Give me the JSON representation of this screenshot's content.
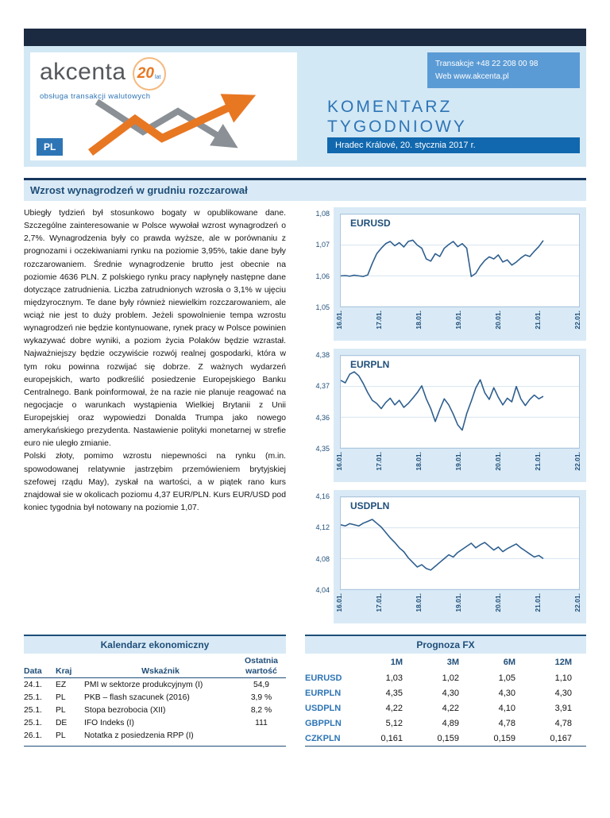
{
  "colors": {
    "navy": "#1b2a41",
    "header_bg": "#d3e8f5",
    "panel_bg": "#d9eaf6",
    "accent_blue": "#2e75b6",
    "dark_blue": "#1f4e79",
    "date_bar_blue": "#1168ae",
    "contact_box_blue": "#5b9bd5",
    "orange": "#e87722",
    "chart_line_blue": "#2d5e8e"
  },
  "header": {
    "logo_text": "akcenta",
    "anniversary_number": "20",
    "anniversary_unit": "lat",
    "tagline": "obsługa transakcji walutowych",
    "lang_badge": "PL",
    "contact_phone": "Transakcje +48 22 208 00 98",
    "contact_web_label": "Web ",
    "contact_web_link": "www.akcenta.pl",
    "title_line1": "KOMENTARZ",
    "title_line2": "TYGODNIOWY",
    "dateline": "Hradec Králové, 20. stycznia 2017 r."
  },
  "article": {
    "headline": "Wzrost wynagrodzeń w grudniu rozczarował",
    "paragraphs": [
      "Ubiegły tydzień był stosunkowo bogaty w opublikowane dane. Szczególne zainteresowanie w Polsce wywołał wzrost wynagrodzeń o 2,7%. Wynagrodzenia były co prawda wyższe, ale w porównaniu z prognozami i oczekiwaniami rynku na poziomie 3,95%, takie dane były rozczarowaniem. Średnie wynagrodzenie brutto jest obecnie na poziomie 4636 PLN. Z polskiego rynku pracy napłynęły następne dane dotyczące zatrudnienia. Liczba zatrudnionych wzrosła o 3,1% w ujęciu międzyrocznym. Te dane były również niewielkim rozczarowaniem, ale wciąż nie jest to duży problem. Jeżeli spowolnienie tempa wzrostu wynagrodzeń nie będzie kontynuowane, rynek pracy w Polsce powinien wykazywać dobre wyniki, a poziom życia Polaków będzie wzrastał. Najważniejszy będzie oczywiście rozwój realnej gospodarki, która w tym roku powinna rozwijać się dobrze. Z ważnych wydarzeń europejskich, warto podkreślić posiedzenie Europejskiego Banku Centralnego. Bank poinformował, że na razie nie planuje reagować na negocjacje o warunkach wystąpienia Wielkiej Brytanii z Unii Europejskiej oraz wypowiedzi Donalda Trumpa jako nowego amerykańskiego prezydenta. Nastawienie polityki monetarnej w strefie euro nie uległo zmianie.",
      "Polski złoty, pomimo wzrostu niepewności na rynku (m.in. spowodowanej relatywnie jastrzębim przemówieniem brytyjskiej szefowej rządu May), zyskał na wartości, a w piątek rano kurs znajdował sie w okolicach poziomu 4,37 EUR/PLN. Kurs EUR/USD pod koniec tygodnia był notowany na poziomie 1,07."
    ]
  },
  "calendar": {
    "title": "Kalendarz ekonomiczny",
    "headers": [
      "Data",
      "Kraj",
      "Wskaźnik",
      "Ostatnia wartość"
    ],
    "rows": [
      [
        "24.1.",
        "EZ",
        "PMI w sektorze produkcyjnym (I)",
        "54,9"
      ],
      [
        "25.1.",
        "PL",
        "PKB – flash szacunek (2016)",
        "3,9 %"
      ],
      [
        "25.1.",
        "PL",
        "Stopa bezrobocia  (XII)",
        "8,2 %"
      ],
      [
        "25.1.",
        "DE",
        "IFO Indeks (I)",
        "111"
      ],
      [
        "26.1.",
        "PL",
        "Notatka z posiedzenia RPP (I)",
        ""
      ]
    ]
  },
  "forecast": {
    "title": "Prognoza FX",
    "headers": [
      "1M",
      "3M",
      "6M",
      "12M"
    ],
    "rows": [
      {
        "pair": "EURUSD",
        "values": [
          "1,03",
          "1,02",
          "1,05",
          "1,10"
        ]
      },
      {
        "pair": "EURPLN",
        "values": [
          "4,35",
          "4,30",
          "4,30",
          "4,30"
        ]
      },
      {
        "pair": "USDPLN",
        "values": [
          "4,22",
          "4,22",
          "4,10",
          "3,91"
        ]
      },
      {
        "pair": "GBPPLN",
        "values": [
          "5,12",
          "4,89",
          "4,78",
          "4,78"
        ]
      },
      {
        "pair": "CZKPLN",
        "values": [
          "0,161",
          "0,159",
          "0,159",
          "0,167"
        ]
      }
    ]
  },
  "chart_data": [
    {
      "type": "line",
      "title": "EURUSD",
      "ylim": [
        1.05,
        1.08
      ],
      "ytick_labels": [
        "1,08",
        "1,07",
        "1,06",
        "1,05"
      ],
      "ytick_values": [
        1.08,
        1.07,
        1.06,
        1.05
      ],
      "xtick_labels": [
        "16.01.",
        "17.01.",
        "18.01.",
        "19.01.",
        "20.01.",
        "21.01.",
        "22.01."
      ],
      "x_data_fraction": 0.85,
      "values": [
        1.06,
        1.0601,
        1.0599,
        1.0602,
        1.06,
        1.0598,
        1.0603,
        1.064,
        1.0672,
        1.069,
        1.0705,
        1.0712,
        1.0698,
        1.0708,
        1.0694,
        1.0712,
        1.0716,
        1.07,
        1.069,
        1.0655,
        1.0648,
        1.0672,
        1.0663,
        1.069,
        1.0702,
        1.0712,
        1.0695,
        1.0705,
        1.069,
        1.0598,
        1.0608,
        1.0632,
        1.065,
        1.0662,
        1.0655,
        1.0668,
        1.0645,
        1.0652,
        1.0635,
        1.0645,
        1.0658,
        1.0668,
        1.0663,
        1.068,
        1.0695,
        1.0715
      ]
    },
    {
      "type": "line",
      "title": "EURPLN",
      "ylim": [
        4.35,
        4.38
      ],
      "ytick_labels": [
        "4,38",
        "4,37",
        "4,36",
        "4,35"
      ],
      "ytick_values": [
        4.38,
        4.37,
        4.36,
        4.35
      ],
      "xtick_labels": [
        "16.01.",
        "17.01.",
        "18.01.",
        "19.01.",
        "20.01.",
        "21.01.",
        "22.01."
      ],
      "x_data_fraction": 0.85,
      "values": [
        4.372,
        4.3712,
        4.374,
        4.3748,
        4.3735,
        4.371,
        4.368,
        4.3655,
        4.3645,
        4.3628,
        4.3648,
        4.3662,
        4.364,
        4.3655,
        4.3632,
        4.3645,
        4.3662,
        4.368,
        4.3702,
        4.366,
        4.3628,
        4.3586,
        4.3625,
        4.366,
        4.364,
        4.361,
        4.3575,
        4.3558,
        4.3612,
        4.3652,
        4.3695,
        4.3722,
        4.368,
        4.3658,
        4.3696,
        4.3665,
        4.364,
        4.3662,
        4.365,
        4.37,
        4.366,
        4.3638,
        4.3658,
        4.3672,
        4.366,
        4.3668
      ]
    },
    {
      "type": "line",
      "title": "USDPLN",
      "ylim": [
        4.04,
        4.16
      ],
      "ytick_labels": [
        "4,16",
        "4,12",
        "4,08",
        "4,04"
      ],
      "ytick_values": [
        4.16,
        4.12,
        4.08,
        4.04
      ],
      "xtick_labels": [
        "16.01.",
        "17.01.",
        "18.01.",
        "19.01.",
        "20.01.",
        "21.01.",
        "22.01."
      ],
      "x_data_fraction": 0.85,
      "values": [
        4.124,
        4.1225,
        4.1255,
        4.124,
        4.1225,
        4.126,
        4.1285,
        4.131,
        4.126,
        4.121,
        4.114,
        4.107,
        4.101,
        4.094,
        4.089,
        4.081,
        4.075,
        4.069,
        4.072,
        4.067,
        4.065,
        4.07,
        4.075,
        4.08,
        4.085,
        4.082,
        4.088,
        4.092,
        4.096,
        4.1,
        4.094,
        4.098,
        4.101,
        4.096,
        4.091,
        4.095,
        4.089,
        4.093,
        4.096,
        4.099,
        4.094,
        4.09,
        4.086,
        4.082,
        4.084,
        4.08
      ]
    }
  ]
}
